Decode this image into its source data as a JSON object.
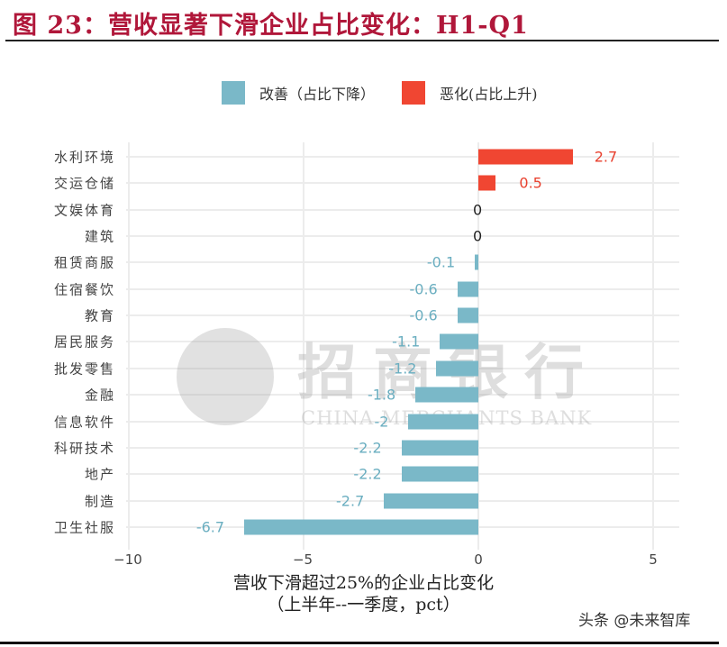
{
  "header": {
    "title": "图 23：营收显著下滑企业占比变化：H1-Q1"
  },
  "legend": [
    {
      "label": "改善（占比下降）",
      "color": "#7ab8c8"
    },
    {
      "label": "恶化(占比上升)",
      "color": "#f04632"
    }
  ],
  "watermark": {
    "cn": "招商银行",
    "en": "CHINA MERCHANTS BANK"
  },
  "credit": "头条 @未来智库",
  "chart_data": {
    "type": "bar",
    "orientation": "horizontal",
    "title": "营收显著下滑企业占比变化：H1-Q1",
    "xlabel": "营收下滑超过25%的企业占比变化\n(上半年--一季度, pct)",
    "ylabel": "",
    "xlim": [
      -10,
      5
    ],
    "xticks": [
      -10,
      -5,
      0,
      5
    ],
    "grid": true,
    "legend_position": "top",
    "categories": [
      "水利环境",
      "交运仓储",
      "文娱体育",
      "建筑",
      "租赁商服",
      "住宿餐饮",
      "教育",
      "居民服务",
      "批发零售",
      "金融",
      "信息软件",
      "科研技术",
      "地产",
      "制造",
      "卫生社服"
    ],
    "values": [
      2.7,
      0.5,
      0,
      0,
      -0.1,
      -0.6,
      -0.6,
      -1.1,
      -1.2,
      -1.8,
      -2,
      -2.2,
      -2.2,
      -2.7,
      -6.7
    ],
    "labels": [
      "2.7",
      "0.5",
      "0",
      "0",
      "-0.1",
      "-0.6",
      "-0.6",
      "-1.1",
      "-1.2",
      "-1.8",
      "-2",
      "-2.2",
      "-2.2",
      "-2.7",
      "-6.7"
    ],
    "series": [
      {
        "name": "改善（占比下降）",
        "color": "#7ab8c8"
      },
      {
        "name": "恶化(占比上升)",
        "color": "#f04632"
      }
    ]
  },
  "axis": {
    "xticks": [
      "−10",
      "−5",
      "0",
      "5"
    ],
    "xlabel_line1": "营收下滑超过25%的企业占比变化",
    "xlabel_line2": "（上半年--一季度，pct）"
  }
}
